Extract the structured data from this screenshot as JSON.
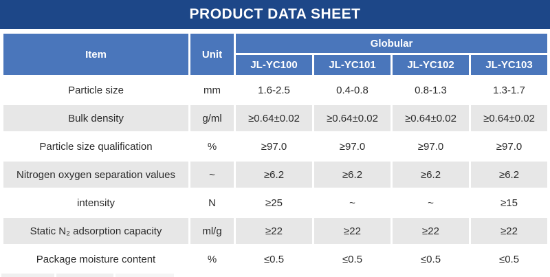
{
  "title": "PRODUCT DATA SHEET",
  "colors": {
    "title_bar": "#1d4788",
    "header_blue": "#4a76bb",
    "row_alt_gray": "#e7e7e7",
    "row_white": "#ffffff",
    "header_text": "#ffffff",
    "body_text": "#2b2b2b"
  },
  "table": {
    "item_header": "Item",
    "unit_header": "Unit",
    "group_header": "Globular",
    "columns": [
      "JL-YC100",
      "JL-YC101",
      "JL-YC102",
      "JL-YC103"
    ],
    "rows": [
      {
        "item": "Particle size",
        "unit": "mm",
        "values": [
          "1.6-2.5",
          "0.4-0.8",
          "0.8-1.3",
          "1.3-1.7"
        ]
      },
      {
        "item": "Bulk density",
        "unit": "g/ml",
        "values": [
          "≥0.64±0.02",
          "≥0.64±0.02",
          "≥0.64±0.02",
          "≥0.64±0.02"
        ]
      },
      {
        "item": "Particle size qualification",
        "unit": "%",
        "values": [
          "≥97.0",
          "≥97.0",
          "≥97.0",
          "≥97.0"
        ]
      },
      {
        "item": "Nitrogen oxygen separation values",
        "unit": "~",
        "values": [
          "≥6.2",
          "≥6.2",
          "≥6.2",
          "≥6.2"
        ]
      },
      {
        "item": "intensity",
        "unit": "N",
        "values": [
          "≥25",
          "~",
          "~",
          "≥15"
        ]
      },
      {
        "item": "Static N₂ adsorption capacity",
        "unit": "ml/g",
        "values": [
          "≥22",
          "≥22",
          "≥22",
          "≥22"
        ]
      },
      {
        "item": "Package moisture content",
        "unit": "%",
        "values": [
          "≤0.5",
          "≤0.5",
          "≤0.5",
          "≤0.5"
        ]
      }
    ]
  }
}
